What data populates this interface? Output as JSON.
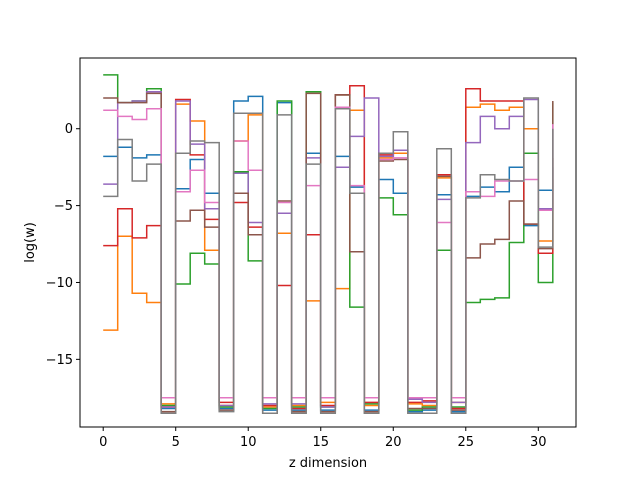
{
  "chart_data": {
    "type": "line",
    "drawstyle": "steps",
    "xlabel": "z dimension",
    "ylabel": "log(w)",
    "xlim": [
      -1.6,
      32.6
    ],
    "ylim": [
      -19.4,
      4.6
    ],
    "xticks": [
      0,
      5,
      10,
      15,
      20,
      25,
      30
    ],
    "yticks": [
      -15,
      -10,
      -5,
      0
    ],
    "grid": false,
    "x": [
      0,
      1,
      2,
      3,
      4,
      5,
      6,
      7,
      8,
      9,
      10,
      11,
      12,
      13,
      14,
      15,
      16,
      17,
      18,
      19,
      20,
      21,
      22,
      23,
      24,
      25,
      26,
      27,
      28,
      29,
      30,
      31
    ],
    "series": [
      {
        "color": "#1f77b4",
        "values": [
          -1.8,
          -1.2,
          -1.9,
          -1.7,
          -18.2,
          -3.9,
          -2.0,
          -4.2,
          -18.2,
          1.8,
          2.1,
          -18.3,
          1.7,
          -18.3,
          -1.6,
          -18.3,
          -1.8,
          -3.8,
          -18.3,
          -3.3,
          -4.2,
          -18.4,
          -18.3,
          -4.3,
          -18.4,
          -4.4,
          -3.8,
          -4.1,
          -2.5,
          -6.3,
          -4.0,
          -2.5
        ]
      },
      {
        "color": "#ff7f0e",
        "values": [
          -13.1,
          -7.0,
          -10.7,
          -11.3,
          -17.9,
          1.6,
          0.5,
          -7.9,
          -18.0,
          -0.8,
          0.9,
          -18.1,
          -6.8,
          -18.0,
          -11.2,
          -17.8,
          -10.4,
          1.2,
          -18.0,
          -1.9,
          -1.6,
          -17.9,
          -18.0,
          -3.2,
          -17.8,
          1.4,
          1.6,
          1.2,
          1.4,
          0.0,
          -7.3,
          -3.3
        ]
      },
      {
        "color": "#2ca02c",
        "values": [
          3.5,
          1.7,
          1.8,
          2.6,
          -18.0,
          -10.1,
          -8.1,
          -8.8,
          -18.1,
          -2.8,
          -8.6,
          -18.2,
          1.8,
          -18.1,
          2.4,
          -18.1,
          2.2,
          -11.6,
          -17.9,
          -4.5,
          -5.6,
          -18.3,
          -18.1,
          -7.9,
          -18.1,
          -11.3,
          -11.1,
          -11.0,
          -7.4,
          -1.6,
          -10.0,
          1.7
        ]
      },
      {
        "color": "#d62728",
        "values": [
          -7.6,
          -5.2,
          -7.1,
          -6.3,
          -18.1,
          1.9,
          -1.7,
          -5.9,
          -17.8,
          -4.8,
          -6.4,
          -18.0,
          -10.2,
          -18.2,
          -6.9,
          -18.0,
          2.2,
          2.8,
          -17.8,
          -1.7,
          -1.4,
          -17.8,
          -17.7,
          -3.0,
          -18.2,
          2.6,
          1.8,
          1.8,
          1.8,
          -6.2,
          -8.1,
          -1.9
        ]
      },
      {
        "color": "#9467bd",
        "values": [
          -3.6,
          1.7,
          1.8,
          2.4,
          -18.1,
          1.8,
          -1.0,
          -5.2,
          -18.0,
          -2.9,
          -6.1,
          -17.9,
          -5.5,
          -17.9,
          -1.9,
          -18.1,
          -2.5,
          -0.5,
          2.0,
          -1.8,
          -1.4,
          -17.6,
          -17.8,
          -4.6,
          -17.8,
          -0.9,
          0.8,
          0.0,
          0.8,
          1.9,
          -5.2,
          0.0
        ]
      },
      {
        "color": "#8c564b",
        "values": [
          2.0,
          1.7,
          1.7,
          2.3,
          -18.4,
          -6.0,
          -5.3,
          -6.4,
          -18.3,
          -4.2,
          -6.9,
          -18.5,
          -4.7,
          -18.4,
          2.3,
          -18.4,
          2.2,
          -8.0,
          -18.4,
          -2.1,
          -2.0,
          -18.2,
          -18.2,
          -3.1,
          -18.3,
          -8.4,
          -7.5,
          -7.2,
          -4.7,
          -6.2,
          -7.8,
          1.8
        ]
      },
      {
        "color": "#e377c2",
        "values": [
          1.2,
          0.8,
          0.6,
          1.3,
          -17.5,
          -4.1,
          -2.7,
          -4.8,
          -17.5,
          -0.8,
          -2.7,
          -17.5,
          -4.8,
          -17.5,
          -3.7,
          -17.5,
          1.4,
          -3.7,
          -17.5,
          -2.0,
          -1.9,
          -17.5,
          -17.5,
          -6.1,
          -17.5,
          -4.1,
          -4.4,
          -3.4,
          -3.4,
          -3.3,
          -5.3,
          0.3
        ]
      },
      {
        "color": "#7f7f7f",
        "values": [
          -4.4,
          -0.7,
          -3.4,
          -2.3,
          -18.5,
          -1.6,
          -0.8,
          -0.9,
          -18.4,
          1.0,
          1.0,
          -18.5,
          0.9,
          -18.5,
          -2.3,
          -18.5,
          1.3,
          -4.2,
          -18.5,
          -1.6,
          -0.2,
          -18.5,
          -18.5,
          -1.3,
          -18.5,
          -4.5,
          -3.0,
          -3.3,
          -3.4,
          2.0,
          -7.7,
          0.0
        ]
      }
    ]
  }
}
